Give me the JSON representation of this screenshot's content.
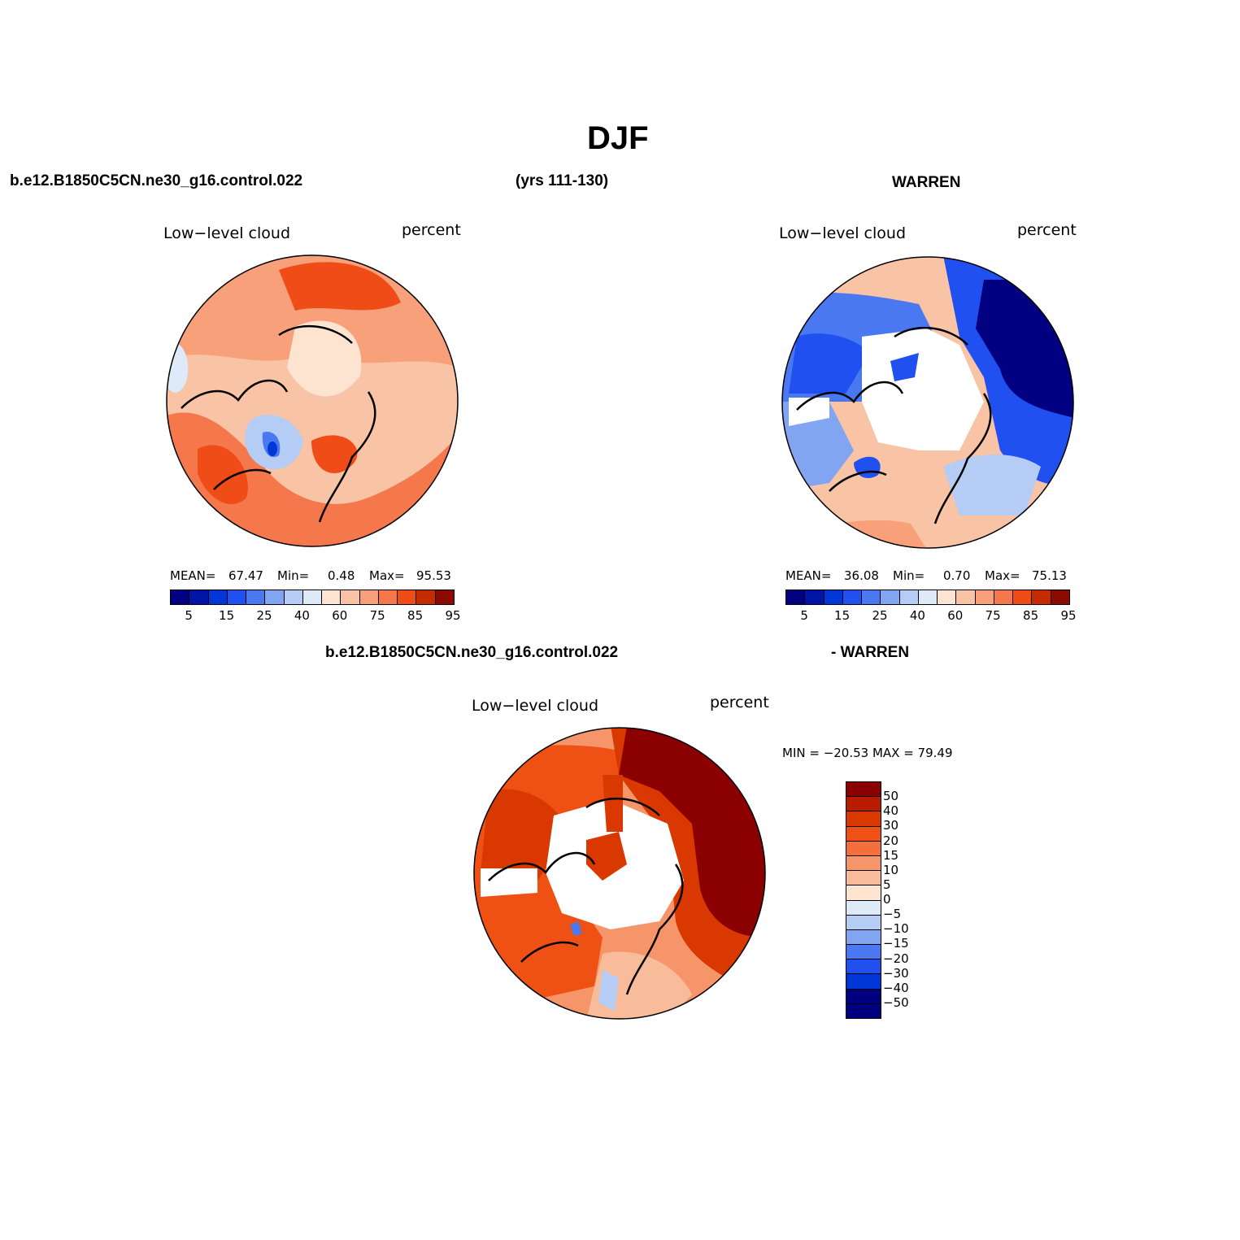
{
  "title": "DJF",
  "header": {
    "case": "b.e12.B1850C5CN.ne30_g16.control.022",
    "years": "(yrs 111-130)",
    "obs": "WARREN",
    "diff_case": "b.e12.B1850C5CN.ne30_g16.control.022",
    "diff_obs": "- WARREN"
  },
  "panels": {
    "model": {
      "variable": "Low−level cloud",
      "units": "percent",
      "mean_label": "MEAN=",
      "mean": "67.47",
      "min_label": "Min=",
      "min": "0.48",
      "max_label": "Max=",
      "max": "95.53"
    },
    "obs": {
      "variable": "Low−level cloud",
      "units": "percent",
      "mean_label": "MEAN=",
      "mean": "36.08",
      "min_label": "Min=",
      "min": "0.70",
      "max_label": "Max=",
      "max": "75.13"
    },
    "diff": {
      "variable": "Low−level cloud",
      "units": "percent",
      "minmax": "MIN = −20.53 MAX =   79.49"
    }
  },
  "chart_data": [
    {
      "type": "heatmap",
      "title": "Low-level cloud (model)",
      "projection": "north polar stereographic",
      "units": "percent",
      "stats": {
        "mean": 67.47,
        "min": 0.48,
        "max": 95.53
      },
      "colorbar_levels": [
        5,
        10,
        15,
        20,
        25,
        30,
        40,
        50,
        60,
        65,
        75,
        80,
        85,
        90,
        95
      ],
      "colorbar_tick_labels": [
        "5",
        "15",
        "25",
        "40",
        "60",
        "75",
        "85",
        "95"
      ]
    },
    {
      "type": "heatmap",
      "title": "Low-level cloud (WARREN)",
      "projection": "north polar stereographic",
      "units": "percent",
      "stats": {
        "mean": 36.08,
        "min": 0.7,
        "max": 75.13
      },
      "colorbar_levels": [
        5,
        10,
        15,
        20,
        25,
        30,
        40,
        50,
        60,
        65,
        75,
        80,
        85,
        90,
        95
      ],
      "colorbar_tick_labels": [
        "5",
        "15",
        "25",
        "40",
        "60",
        "75",
        "85",
        "95"
      ]
    },
    {
      "type": "heatmap",
      "title": "Low-level cloud (model - WARREN)",
      "projection": "north polar stereographic",
      "units": "percent",
      "stats": {
        "min": -20.53,
        "max": 79.49
      },
      "colorbar_levels": [
        50,
        40,
        30,
        20,
        15,
        10,
        5,
        0,
        -5,
        -10,
        -15,
        -20,
        -30,
        -40,
        -50
      ],
      "colorbar_tick_labels": [
        "50",
        "40",
        "30",
        "20",
        "15",
        "10",
        "5",
        "0",
        "−5",
        "−10",
        "−15",
        "−20",
        "−30",
        "−40",
        "−50"
      ]
    }
  ],
  "colors": {
    "seq_palette": [
      "#000080",
      "#0015a8",
      "#0036d6",
      "#2050f0",
      "#4a78f0",
      "#82a5f2",
      "#b5ccf5",
      "#dfeaf8",
      "#fde4d0",
      "#f9c3a5",
      "#f7a07a",
      "#f5784d",
      "#ef4c18",
      "#c52b00",
      "#8c0a00"
    ],
    "div_palette": [
      "#8b0000",
      "#b81c00",
      "#d93800",
      "#ef5014",
      "#f56f3c",
      "#f7956a",
      "#f9bc9a",
      "#fde4d0",
      "#dfeaf8",
      "#b5ccf5",
      "#82a5f2",
      "#4a78f0",
      "#2050f0",
      "#0036d6",
      "#000080"
    ]
  }
}
